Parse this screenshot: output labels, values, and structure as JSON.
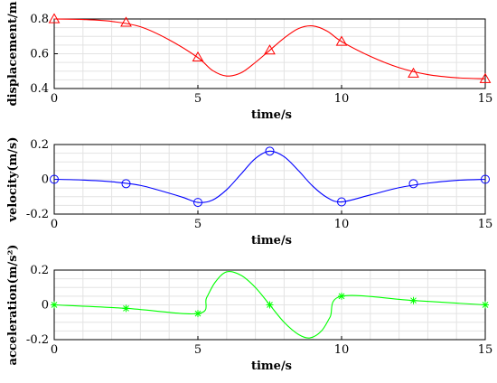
{
  "chart_data": [
    {
      "type": "line",
      "xlabel": "time/s",
      "ylabel": "displacement/m",
      "xlim": [
        0,
        15
      ],
      "ylim": [
        0.4,
        0.8
      ],
      "xticks": [
        "0",
        "5",
        "10",
        "15"
      ],
      "yticks": [
        "0.4",
        "0.6",
        "0.8"
      ],
      "grid": true,
      "color": "#ff0000",
      "marker": "triangle",
      "curve": {
        "x": [
          0,
          1,
          2,
          3,
          4,
          5,
          5.5,
          6,
          6.5,
          7,
          7.5,
          8,
          8.5,
          9,
          9.5,
          10,
          11,
          12,
          13,
          14,
          15
        ],
        "y": [
          0.8,
          0.797,
          0.786,
          0.755,
          0.68,
          0.578,
          0.505,
          0.472,
          0.49,
          0.55,
          0.62,
          0.69,
          0.745,
          0.76,
          0.73,
          0.67,
          0.585,
          0.52,
          0.48,
          0.462,
          0.456
        ]
      },
      "markers": {
        "x": [
          0,
          2.5,
          5,
          7.5,
          10,
          12.5,
          15
        ],
        "y": [
          0.8,
          0.78,
          0.58,
          0.62,
          0.67,
          0.487,
          0.456
        ]
      }
    },
    {
      "type": "line",
      "xlabel": "time/s",
      "ylabel": "velocity(m/s)",
      "xlim": [
        0,
        15
      ],
      "ylim": [
        -0.2,
        0.2
      ],
      "xticks": [
        "0",
        "5",
        "10",
        "15"
      ],
      "yticks": [
        "-0.2",
        "0",
        "0.2"
      ],
      "grid": true,
      "color": "#0000ff",
      "marker": "circle",
      "curve": {
        "x": [
          0,
          1,
          2,
          3,
          4,
          4.5,
          5,
          5.5,
          6,
          6.5,
          7,
          7.5,
          8,
          8.5,
          9,
          9.5,
          10,
          11,
          12,
          13,
          14,
          15
        ],
        "y": [
          0,
          -0.004,
          -0.014,
          -0.035,
          -0.08,
          -0.105,
          -0.133,
          -0.12,
          -0.06,
          0.03,
          0.12,
          0.162,
          0.13,
          0.05,
          -0.04,
          -0.105,
          -0.13,
          -0.09,
          -0.048,
          -0.022,
          -0.006,
          0
        ]
      },
      "markers": {
        "x": [
          0,
          2.5,
          5,
          7.5,
          10,
          12.5,
          15
        ],
        "y": [
          0,
          -0.025,
          -0.133,
          0.162,
          -0.13,
          -0.025,
          0
        ]
      }
    },
    {
      "type": "line",
      "xlabel": "time/s",
      "ylabel": "acceleration(m/s²)",
      "xlim": [
        0,
        15
      ],
      "ylim": [
        -0.2,
        0.2
      ],
      "xticks": [
        "0",
        "5",
        "10",
        "15"
      ],
      "yticks": [
        "-0.2",
        "0",
        "0.2"
      ],
      "grid": true,
      "color": "#00ff00",
      "marker": "star",
      "curve": {
        "x": [
          0,
          2.5,
          5,
          5.3,
          5.6,
          6,
          6.5,
          7,
          7.5,
          8,
          8.5,
          8.9,
          9.3,
          9.6,
          10,
          12.5,
          15
        ],
        "y": [
          0,
          -0.02,
          -0.05,
          0.04,
          0.13,
          0.19,
          0.17,
          0.1,
          0,
          -0.1,
          -0.17,
          -0.19,
          -0.15,
          -0.07,
          0.05,
          0.025,
          0
        ]
      },
      "markers": {
        "x": [
          0,
          2.5,
          5,
          7.5,
          10,
          12.5,
          15
        ],
        "y": [
          0,
          -0.02,
          -0.05,
          0,
          0.05,
          0.025,
          0
        ]
      }
    }
  ]
}
